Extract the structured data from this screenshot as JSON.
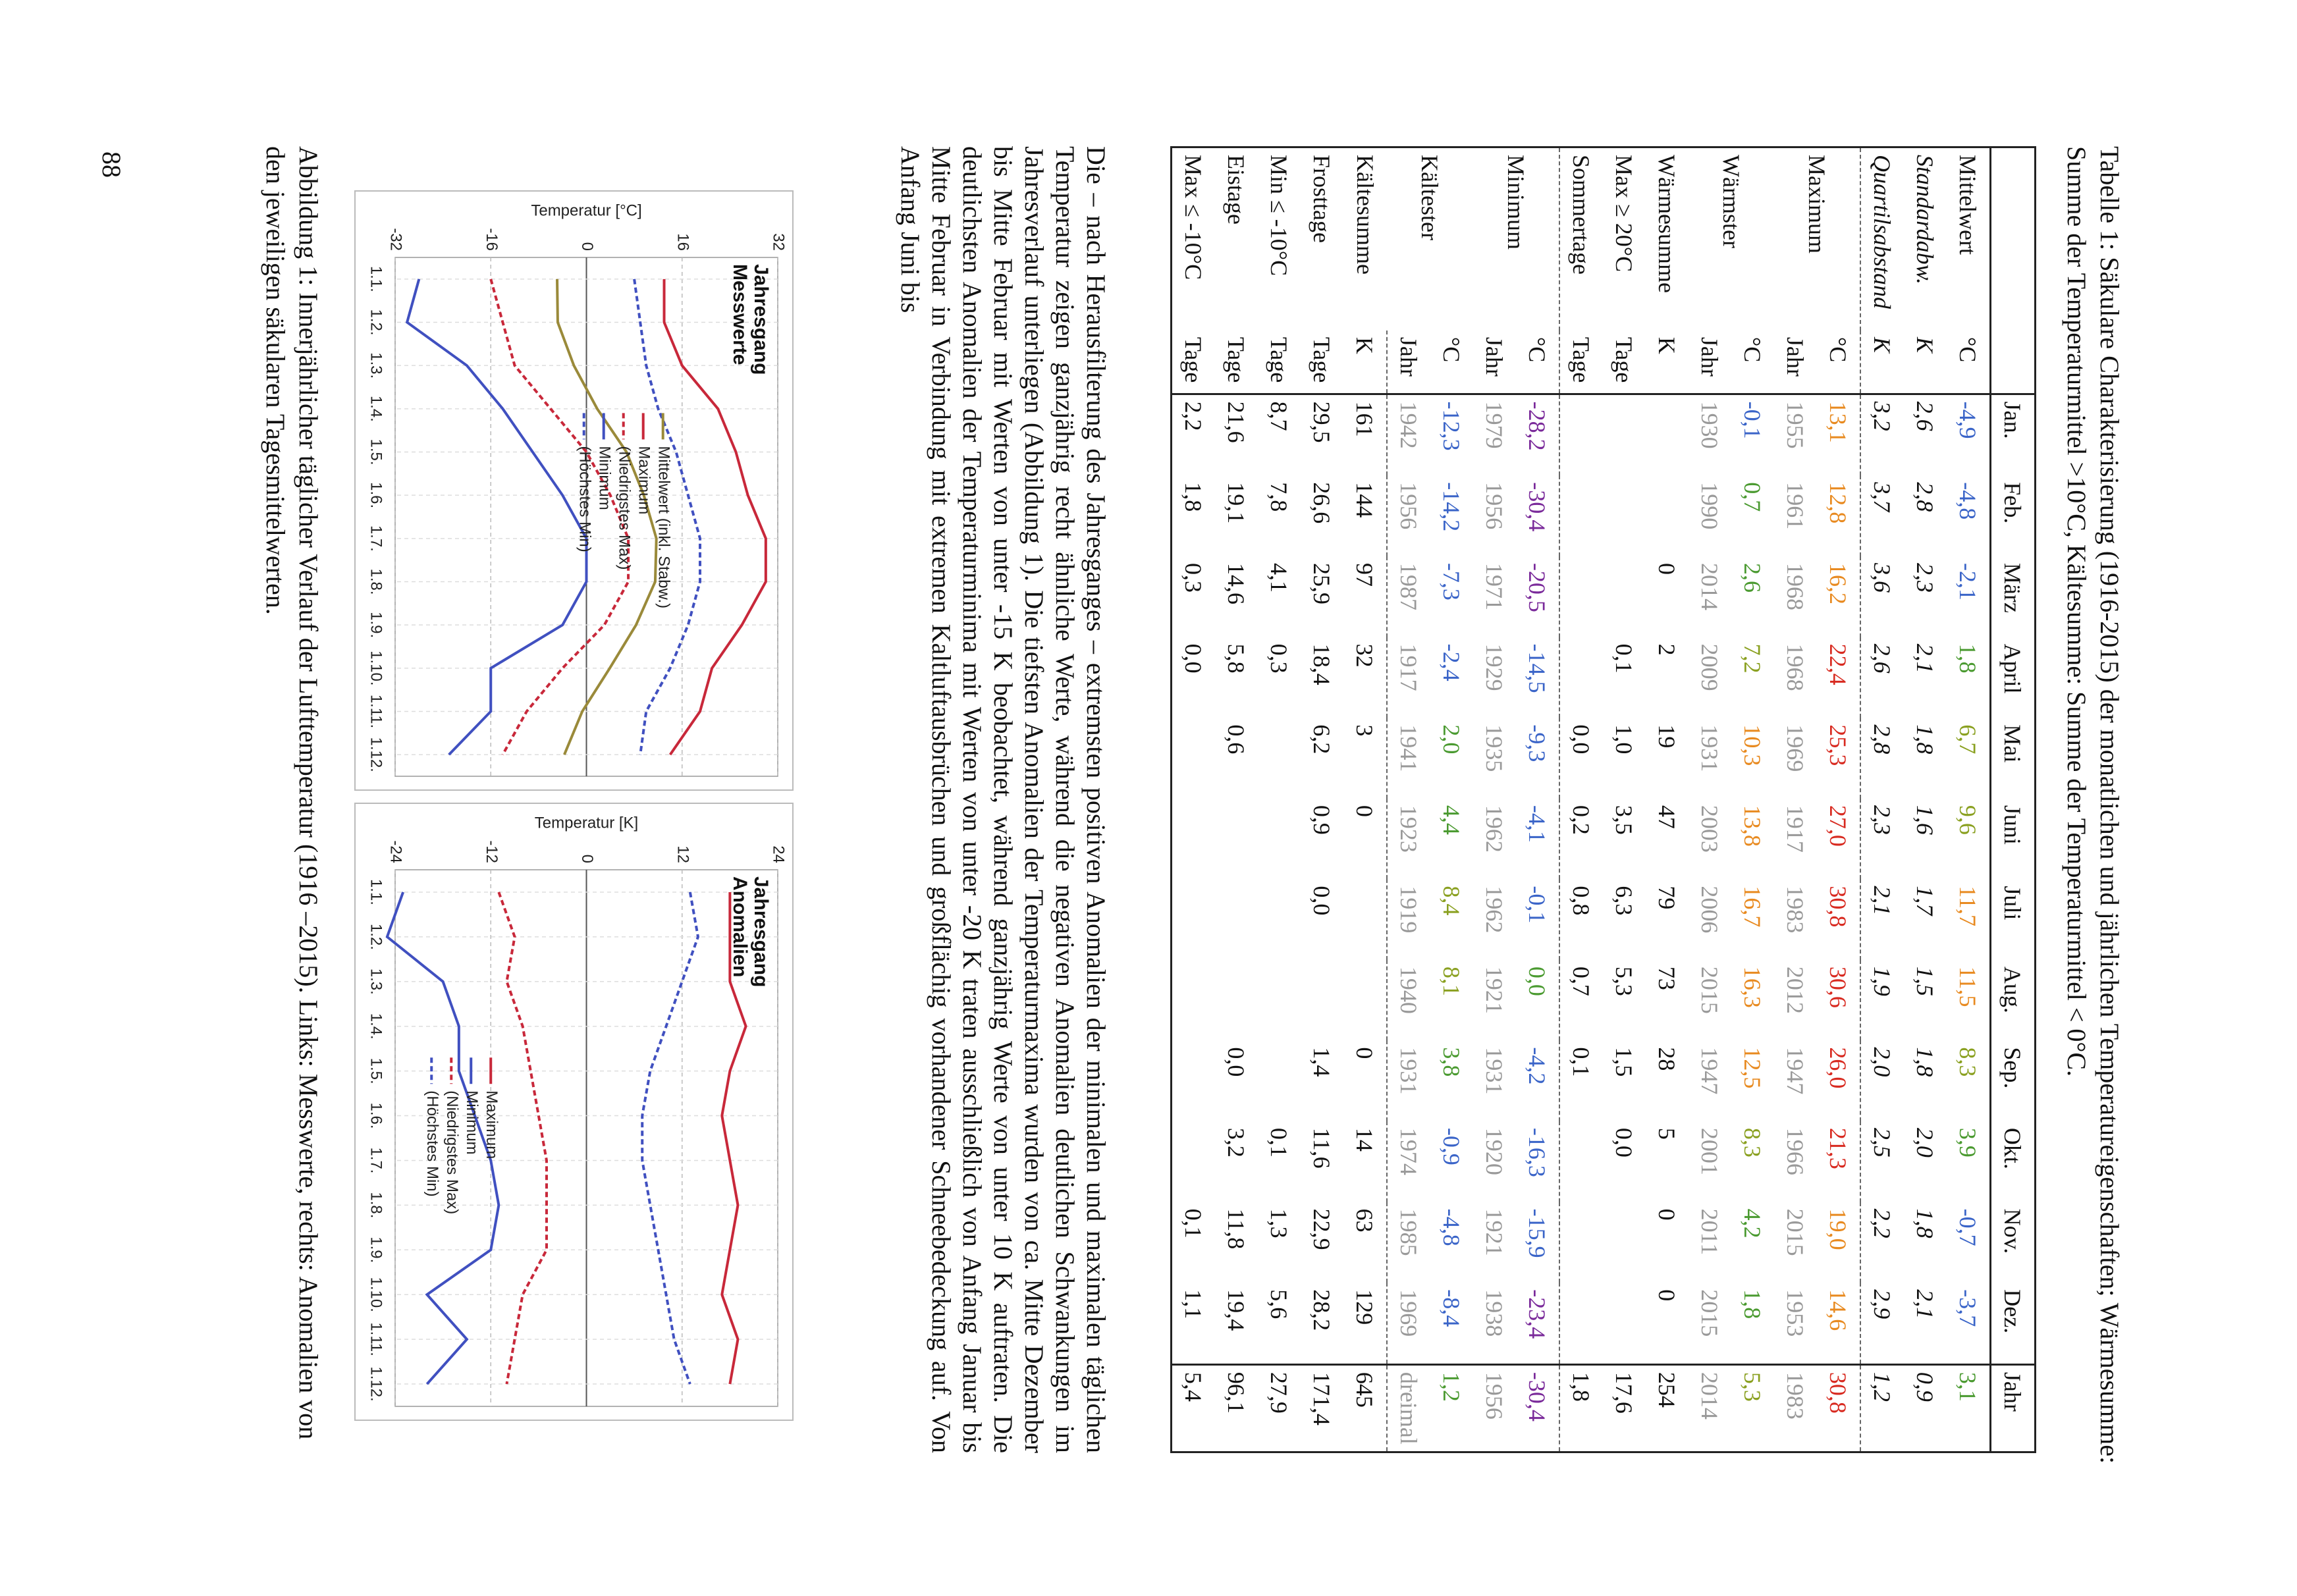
{
  "caption": "Tabelle 1: Säkulare Charakterisierung (1916-2015) der monatlichen und jährlichen Temperatureigenschaften; Wärmesumme: Summe der Temperaturmittel >10°C, Kältesumme: Summe der Temperaturmittel < 0°C.",
  "table": {
    "header": [
      "Jan.",
      "Feb.",
      "März",
      "April",
      "Mai",
      "Juni",
      "Juli",
      "Aug.",
      "Sep.",
      "Okt.",
      "Nov.",
      "Dez.",
      "Jahr"
    ],
    "rows": [
      {
        "label": "Mittelwert",
        "unit": "°C",
        "values": [
          "-4,9",
          "-4,8",
          "-2,1",
          "1,8",
          "6,7",
          "9,6",
          "11,7",
          "11,5",
          "8,3",
          "3,9",
          "-0,7",
          "-3,7",
          "3,1"
        ]
      },
      {
        "label": "Standardabw.",
        "unit": "K",
        "values": [
          "2,6",
          "2,8",
          "2,3",
          "2,1",
          "1,8",
          "1,6",
          "1,7",
          "1,5",
          "1,8",
          "2,0",
          "1,8",
          "2,1",
          "0,9"
        ]
      },
      {
        "label": "Quartilsabstand",
        "unit": "K",
        "values": [
          "3,2",
          "3,7",
          "3,6",
          "2,6",
          "2,8",
          "2,3",
          "2,1",
          "1,9",
          "2,0",
          "2,5",
          "2,2",
          "2,9",
          "1,2"
        ]
      },
      {
        "label": "Maximum",
        "unit": "°C",
        "values": [
          "13,1",
          "12,8",
          "16,2",
          "22,4",
          "25,3",
          "27,0",
          "30,8",
          "30,6",
          "26,0",
          "21,3",
          "19,0",
          "14,6",
          "30,8"
        ]
      },
      {
        "label": null,
        "unit": "Jahr",
        "values": [
          "1955",
          "1961",
          "1968",
          "1968",
          "1969",
          "1917",
          "1983",
          "2012",
          "1947",
          "1966",
          "2015",
          "1953",
          "1983"
        ]
      },
      {
        "label": "Wärmster",
        "unit": "°C",
        "values": [
          "-0,1",
          "0,7",
          "2,6",
          "7,2",
          "10,3",
          "13,8",
          "16,7",
          "16,3",
          "12,5",
          "8,3",
          "4,2",
          "1,8",
          "5,3"
        ]
      },
      {
        "label": null,
        "unit": "Jahr",
        "values": [
          "1930",
          "1990",
          "2014",
          "2009",
          "1931",
          "2003",
          "2006",
          "2015",
          "1947",
          "2001",
          "2011",
          "2015",
          "2014"
        ]
      },
      {
        "label": "Wärmesumme",
        "unit": "K",
        "values": [
          null,
          null,
          "0",
          "2",
          "19",
          "47",
          "79",
          "73",
          "28",
          "5",
          "0",
          "0",
          "254"
        ]
      },
      {
        "label": "Max ≥ 20°C",
        "unit": "Tage",
        "values": [
          null,
          null,
          null,
          "0,1",
          "1,0",
          "3,5",
          "6,3",
          "5,3",
          "1,5",
          "0,0",
          null,
          null,
          "17,6"
        ]
      },
      {
        "label": "Sommertage",
        "unit": "Tage",
        "values": [
          null,
          null,
          null,
          null,
          "0,0",
          "0,2",
          "0,8",
          "0,7",
          "0,1",
          null,
          null,
          null,
          "1,8"
        ]
      },
      {
        "label": "Minimum",
        "unit": "°C",
        "values": [
          "-28,2",
          "-30,4",
          "-20,5",
          "-14,5",
          "-9,3",
          "-4,1",
          "-0,1",
          "0,0",
          "-4,2",
          "-16,3",
          "-15,9",
          "-23,4",
          "-30,4"
        ]
      },
      {
        "label": null,
        "unit": "Jahr",
        "values": [
          "1979",
          "1956",
          "1971",
          "1929",
          "1935",
          "1962",
          "1962",
          "1921",
          "1931",
          "1920",
          "1921",
          "1938",
          "1956"
        ]
      },
      {
        "label": "Kältester",
        "unit": "°C",
        "values": [
          "-12,3",
          "-14,2",
          "-7,3",
          "-2,4",
          "2,0",
          "4,4",
          "8,4",
          "8,1",
          "3,8",
          "-0,9",
          "-4,8",
          "-8,4",
          "1,2"
        ]
      },
      {
        "label": null,
        "unit": "Jahr",
        "values": [
          "1942",
          "1956",
          "1987",
          "1917",
          "1941",
          "1923",
          "1919",
          "1940",
          "1931",
          "1974",
          "1985",
          "1969",
          "dreimal"
        ]
      },
      {
        "label": "Kältesumme",
        "unit": "K",
        "values": [
          "161",
          "144",
          "97",
          "32",
          "3",
          "0",
          null,
          null,
          "0",
          "14",
          "63",
          "129",
          "645"
        ]
      },
      {
        "label": "Frosttage",
        "unit": "Tage",
        "values": [
          "29,5",
          "26,6",
          "25,9",
          "18,4",
          "6,2",
          "0,9",
          "0,0",
          null,
          "1,4",
          "11,6",
          "22,9",
          "28,2",
          "171,4"
        ]
      },
      {
        "label": "Min ≤ -10°C",
        "unit": "Tage",
        "values": [
          "8,7",
          "7,8",
          "4,1",
          "0,3",
          null,
          null,
          null,
          null,
          null,
          "0,1",
          "1,3",
          "5,6",
          "27,9"
        ]
      },
      {
        "label": "Eistage",
        "unit": "Tage",
        "values": [
          "21,6",
          "19,1",
          "14,6",
          "5,8",
          "0,6",
          null,
          null,
          null,
          "0,0",
          "3,2",
          "11,8",
          "19,4",
          "96,1"
        ]
      },
      {
        "label": "Max ≤ -10°C",
        "unit": "Tage",
        "values": [
          "2,2",
          "1,8",
          "0,3",
          "0,0",
          null,
          null,
          null,
          null,
          null,
          null,
          "0,1",
          "1,1",
          "5,4"
        ]
      }
    ]
  },
  "paragraph": "Die – nach Herausfilterung des Jahresganges – extremsten positiven Anomalien der minimalen und maximalen täglichen Temperatur zeigen ganzjährig recht ähnliche Werte, während die negativen Anomalien deutlichen Schwankungen im Jahresverlauf unterliegen (Abbildung 1). Die tiefsten Anomalien der Temperaturmaxima wurden von ca. Mitte Dezember bis Mitte Februar mit Werten von unter -15 K beobachtet, während ganzjährig Werte von unter 10 K auftraten. Die deutlichsten Anomalien der Temperaturminima mit Werten von unter -20 K traten ausschließlich von Anfang Januar bis Mitte Februar in Verbindung mit extremen Kaltluftausbrüchen und großflächig vorhandener Schneebedeckung auf. Von Anfang Juni bis",
  "chart_data": [
    {
      "type": "line",
      "title": "Jahresgang Messwerte",
      "ylabel": "Temperatur [°C]",
      "categories": [
        "1.1.",
        "1.2.",
        "1.3.",
        "1.4.",
        "1.5.",
        "1.6.",
        "1.7.",
        "1.8.",
        "1.9.",
        "1.10.",
        "1.11.",
        "1.12."
      ],
      "ylim": [
        -32,
        32
      ],
      "yticks": [
        -32,
        -16,
        0,
        16,
        32
      ],
      "grid": true,
      "series": [
        {
          "name": "Mittelwert (inkl. Stabw.)",
          "color": "#9a8a3a",
          "dash": false,
          "values": [
            -4.9,
            -4.8,
            -2.1,
            1.8,
            6.7,
            9.6,
            11.7,
            11.5,
            8.3,
            3.9,
            -0.7,
            -3.7
          ]
        },
        {
          "name": "Maximum",
          "color": "#c8283a",
          "dash": false,
          "values": [
            13,
            13,
            16,
            22,
            25,
            27,
            30,
            30,
            26,
            21,
            19,
            14
          ]
        },
        {
          "name": "(Niedrigstes Max)",
          "color": "#c8283a",
          "dash": true,
          "values": [
            -16,
            -14,
            -12,
            -6,
            0,
            4,
            7,
            7,
            3,
            -4,
            -10,
            -14
          ]
        },
        {
          "name": "Minimum",
          "color": "#4050c0",
          "dash": false,
          "values": [
            -28,
            -30,
            -20,
            -14,
            -9,
            -4,
            0,
            0,
            -4,
            -16,
            -16,
            -23
          ]
        },
        {
          "name": "(Höchstes Min)",
          "color": "#4050c0",
          "dash": true,
          "values": [
            8,
            9,
            10,
            12,
            15,
            17,
            19,
            19,
            17,
            14,
            10,
            9
          ]
        }
      ]
    },
    {
      "type": "line",
      "title": "Jahresgang Anomalien",
      "ylabel": "Temperatur [K]",
      "categories": [
        "1.1.",
        "1.2.",
        "1.3.",
        "1.4.",
        "1.5.",
        "1.6.",
        "1.7.",
        "1.8.",
        "1.9.",
        "1.10.",
        "1.11.",
        "1.12."
      ],
      "ylim": [
        -24,
        24
      ],
      "yticks": [
        -24,
        -12,
        0,
        12,
        24
      ],
      "grid": true,
      "series": [
        {
          "name": "Maximum",
          "color": "#c8283a",
          "dash": false,
          "values": [
            18,
            18,
            18,
            20,
            18,
            17,
            18,
            19,
            18,
            17,
            19,
            18
          ]
        },
        {
          "name": "Minimum",
          "color": "#4050c0",
          "dash": false,
          "values": [
            -23,
            -25,
            -18,
            -16,
            -16,
            -14,
            -12,
            -11,
            -12,
            -20,
            -15,
            -20
          ]
        },
        {
          "name": "(Niedrigstes Max)",
          "color": "#c8283a",
          "dash": true,
          "values": [
            -11,
            -9,
            -10,
            -8,
            -7,
            -6,
            -5,
            -5,
            -5,
            -8,
            -9,
            -10
          ]
        },
        {
          "name": "(Höchstes Min)",
          "color": "#4050c0",
          "dash": true,
          "values": [
            13,
            14,
            12,
            10,
            8,
            7,
            7,
            8,
            9,
            10,
            11,
            13
          ]
        }
      ]
    }
  ],
  "figure_caption": "Abbildung 1: Innerjährlicher täglicher Verlauf der Lufttemperatur (1916 –2015). Links: Messwerte, rechts: Anomalien von den jeweiligen säkularen Tagesmittelwerten.",
  "page_number": "88"
}
